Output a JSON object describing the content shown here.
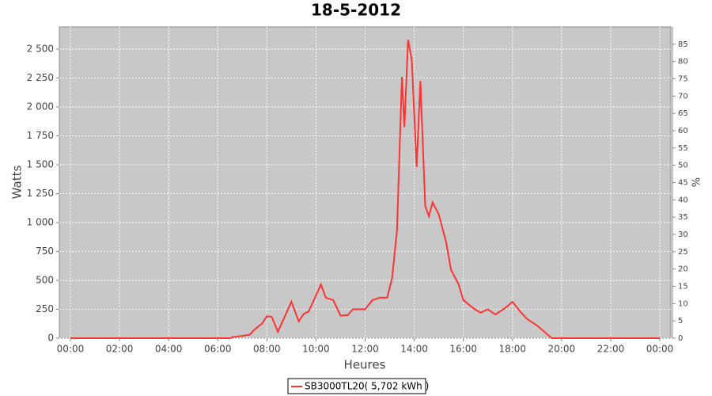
{
  "chart_data": {
    "type": "line",
    "title": "18-5-2012",
    "x_label": "Heures",
    "y_label": "Watts",
    "y2_label": "%",
    "x": [
      0,
      6.5,
      6.6,
      7.0,
      7.3,
      7.5,
      7.8,
      8.0,
      8.2,
      8.45,
      9.0,
      9.3,
      9.5,
      9.7,
      10.0,
      10.2,
      10.4,
      10.7,
      11.0,
      11.3,
      11.5,
      12.0,
      12.3,
      12.6,
      12.9,
      13.1,
      13.3,
      13.5,
      13.6,
      13.75,
      13.9,
      14.1,
      14.25,
      14.45,
      14.6,
      14.75,
      15.0,
      15.3,
      15.5,
      15.8,
      16.0,
      16.4,
      16.7,
      17.0,
      17.3,
      17.7,
      18.0,
      18.3,
      18.6,
      19.0,
      19.3,
      19.6,
      24
    ],
    "series": [
      {
        "name": "SB3000TL20( 5,702 kWh )",
        "color": "#ff3333",
        "values": [
          0,
          0,
          10,
          20,
          30,
          75,
          125,
          190,
          185,
          55,
          315,
          145,
          210,
          230,
          370,
          465,
          350,
          330,
          195,
          200,
          250,
          250,
          330,
          350,
          350,
          520,
          935,
          2260,
          1825,
          2580,
          2410,
          1480,
          2225,
          1140,
          1055,
          1175,
          1070,
          830,
          590,
          470,
          330,
          260,
          220,
          250,
          205,
          260,
          315,
          235,
          165,
          110,
          55,
          0,
          0
        ]
      }
    ],
    "xlim": [
      -0.45,
      24.45
    ],
    "xticks": [
      {
        "value": 0,
        "label": "00:00"
      },
      {
        "value": 2,
        "label": "02:00"
      },
      {
        "value": 4,
        "label": "04:00"
      },
      {
        "value": 6,
        "label": "06:00"
      },
      {
        "value": 8,
        "label": "08:00"
      },
      {
        "value": 10,
        "label": "10:00"
      },
      {
        "value": 12,
        "label": "12:00"
      },
      {
        "value": 14,
        "label": "14:00"
      },
      {
        "value": 16,
        "label": "16:00"
      },
      {
        "value": 18,
        "label": "18:00"
      },
      {
        "value": 20,
        "label": "20:00"
      },
      {
        "value": 22,
        "label": "22:00"
      },
      {
        "value": 24,
        "label": "00:00"
      }
    ],
    "ylim": [
      0,
      2692
    ],
    "yticks": [
      0,
      250,
      500,
      750,
      {
        "value": 1000,
        "label": "1 000"
      },
      {
        "value": 1250,
        "label": "1 250"
      },
      {
        "value": 1500,
        "label": "1 500"
      },
      {
        "value": 1750,
        "label": "1 750"
      },
      {
        "value": 2000,
        "label": "2 000"
      },
      {
        "value": 2250,
        "label": "2 250"
      },
      {
        "value": 2500,
        "label": "2 500"
      }
    ],
    "y2lim": [
      0,
      90
    ],
    "y2ticks": [
      0,
      5,
      10,
      15,
      20,
      25,
      30,
      35,
      40,
      45,
      50,
      55,
      60,
      65,
      70,
      75,
      80,
      85
    ],
    "grid": true
  }
}
